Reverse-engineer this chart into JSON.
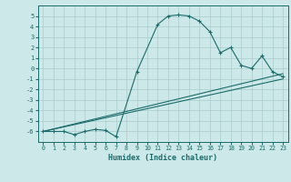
{
  "xlabel": "Humidex (Indice chaleur)",
  "bg_color": "#cce8e8",
  "grid_color": "#aacccc",
  "line_color": "#1a6b6b",
  "xlim": [
    -0.5,
    23.5
  ],
  "ylim": [
    -7,
    6
  ],
  "yticks": [
    -6,
    -5,
    -4,
    -3,
    -2,
    -1,
    0,
    1,
    2,
    3,
    4,
    5
  ],
  "xticks": [
    0,
    1,
    2,
    3,
    4,
    5,
    6,
    7,
    8,
    9,
    10,
    11,
    12,
    13,
    14,
    15,
    16,
    17,
    18,
    19,
    20,
    21,
    22,
    23
  ],
  "series_main": {
    "x": [
      0,
      1,
      2,
      3,
      4,
      5,
      6,
      7,
      9,
      11,
      12,
      13,
      14,
      15,
      16,
      17,
      18,
      19,
      20,
      21,
      22,
      23
    ],
    "y": [
      -6,
      -6,
      -6,
      -6.3,
      -6,
      -5.8,
      -5.9,
      -6.5,
      -0.3,
      4.2,
      5.0,
      5.1,
      5.0,
      4.5,
      3.5,
      1.5,
      2.0,
      0.3,
      0.0,
      1.2,
      -0.3,
      -0.8
    ]
  },
  "series_line1": {
    "x": [
      0,
      23
    ],
    "y": [
      -6,
      -1
    ]
  },
  "series_line2": {
    "x": [
      0,
      23
    ],
    "y": [
      -6,
      -0.5
    ]
  }
}
